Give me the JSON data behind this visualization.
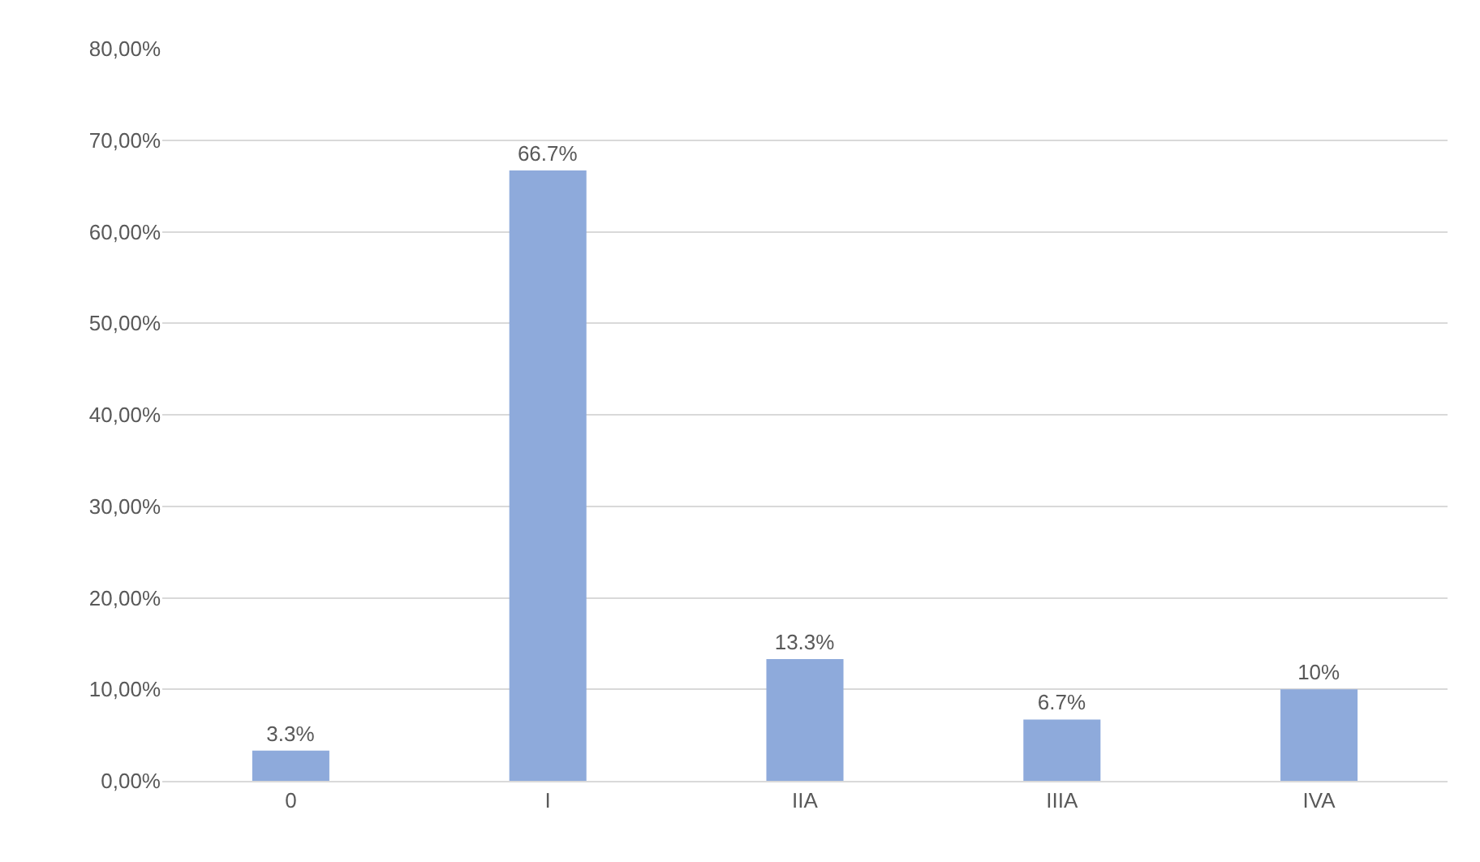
{
  "chart_data": {
    "type": "bar",
    "categories": [
      "0",
      "I",
      "IIA",
      "IIIA",
      "IVA"
    ],
    "values": [
      3.3,
      66.7,
      13.3,
      6.7,
      10
    ],
    "value_labels": [
      "3.3%",
      "66.7%",
      "13.3%",
      "6.7%",
      "10%"
    ],
    "color": "#8eaadb",
    "ylim": [
      0,
      80
    ],
    "yticks": [
      {
        "value": 0,
        "label": "0,00%"
      },
      {
        "value": 10,
        "label": "10,00%"
      },
      {
        "value": 20,
        "label": "20,00%"
      },
      {
        "value": 30,
        "label": "30,00%"
      },
      {
        "value": 40,
        "label": "40,00%"
      },
      {
        "value": 50,
        "label": "50,00%"
      },
      {
        "value": 60,
        "label": "60,00%"
      },
      {
        "value": 70,
        "label": "70,00%"
      },
      {
        "value": 80,
        "label": "80,00%"
      }
    ],
    "grid": "y"
  }
}
